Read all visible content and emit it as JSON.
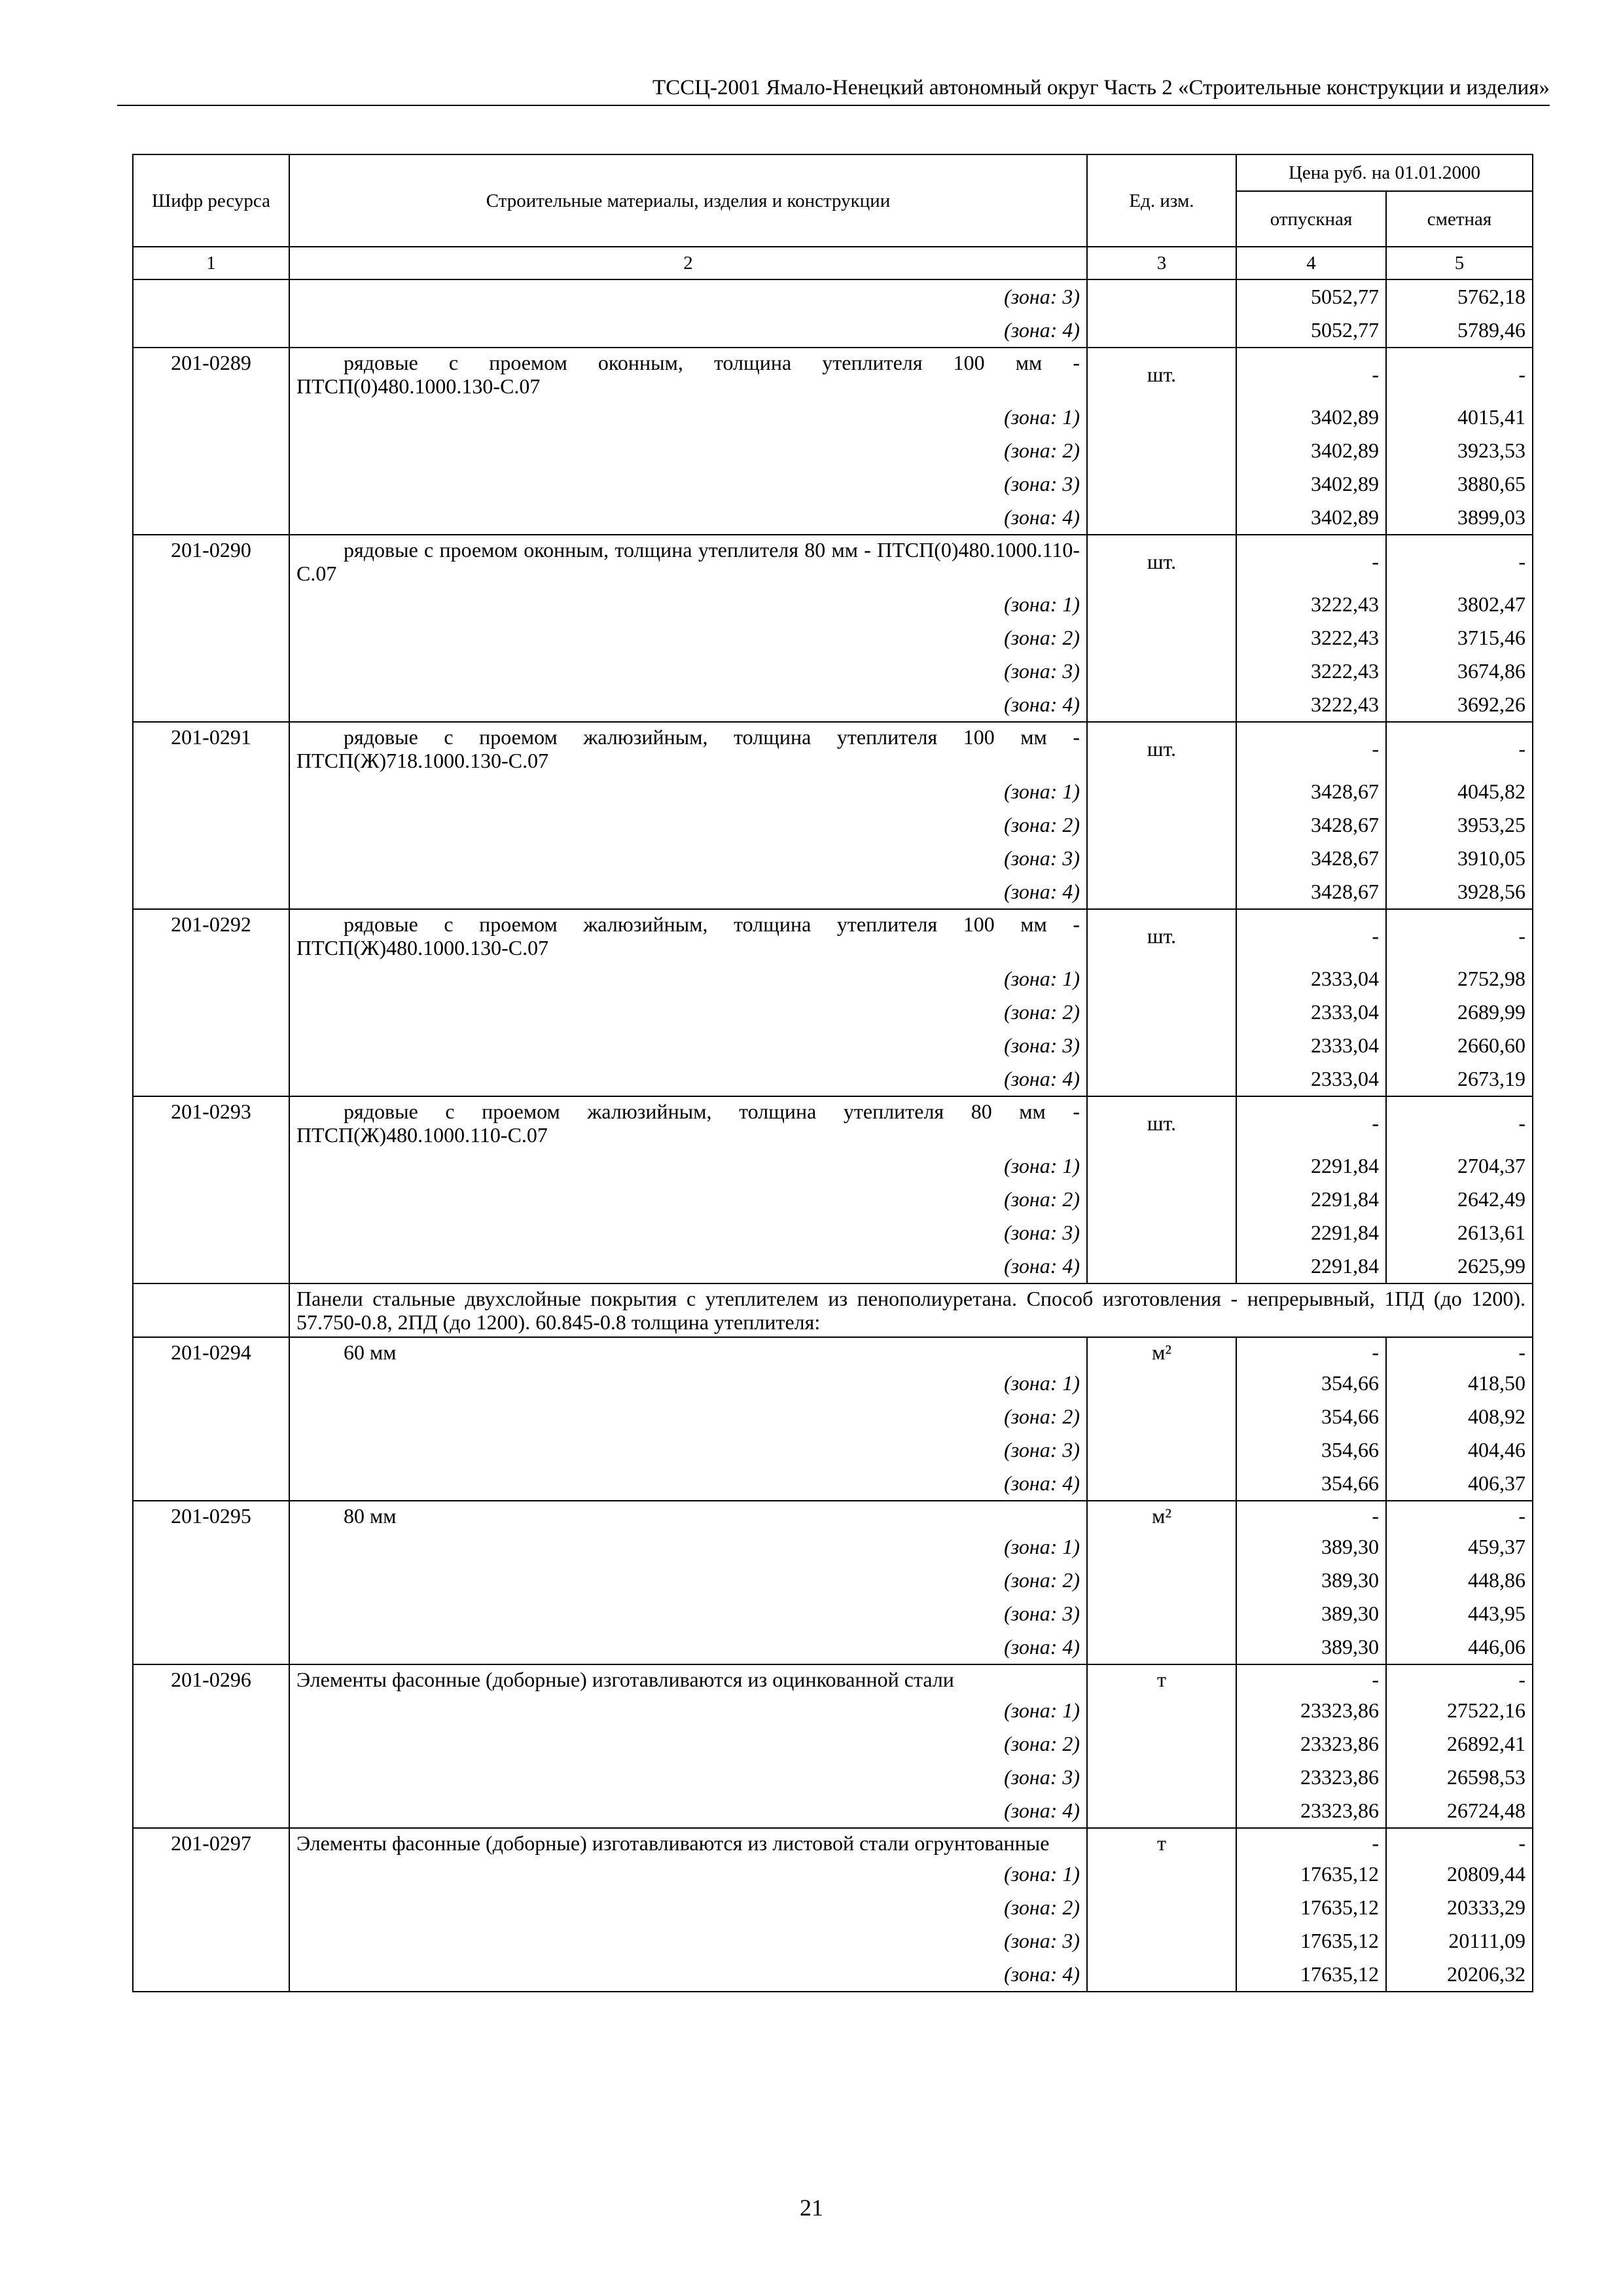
{
  "header": "ТССЦ-2001 Ямало-Ненецкий автономный округ Часть 2 «Строительные конструкции и изделия»",
  "table": {
    "head": {
      "code": "Шифр ресурса",
      "name": "Строительные материалы, изделия и конструкции",
      "unit": "Ед. изм.",
      "price": "Цена руб. на 01.01.2000",
      "release": "отпускная",
      "estimate": "сметная"
    },
    "numbers": [
      "1",
      "2",
      "3",
      "4",
      "5"
    ],
    "groups": [
      {
        "zones": [
          [
            "(зона: 3)",
            "5052,77",
            "5762,18"
          ],
          [
            "(зона: 4)",
            "5052,77",
            "5789,46"
          ]
        ]
      },
      {
        "code": "201-0289",
        "name": "рядовые с проемом оконным, толщина утеплителя 100 мм - ПТСП(0)480.1000.130-С.07",
        "unit": "шт.",
        "release": "-",
        "estimate": "-",
        "zones": [
          [
            "(зона: 1)",
            "3402,89",
            "4015,41"
          ],
          [
            "(зона: 2)",
            "3402,89",
            "3923,53"
          ],
          [
            "(зона: 3)",
            "3402,89",
            "3880,65"
          ],
          [
            "(зона: 4)",
            "3402,89",
            "3899,03"
          ]
        ]
      },
      {
        "code": "201-0290",
        "name": "рядовые с проемом оконным, толщина утеплителя 80 мм - ПТСП(0)480.1000.110-С.07",
        "unit": "шт.",
        "release": "-",
        "estimate": "-",
        "zones": [
          [
            "(зона: 1)",
            "3222,43",
            "3802,47"
          ],
          [
            "(зона: 2)",
            "3222,43",
            "3715,46"
          ],
          [
            "(зона: 3)",
            "3222,43",
            "3674,86"
          ],
          [
            "(зона: 4)",
            "3222,43",
            "3692,26"
          ]
        ]
      },
      {
        "code": "201-0291",
        "name": "рядовые с проемом жалюзийным, толщина утеплителя 100 мм - ПТСП(Ж)718.1000.130-С.07",
        "unit": "шт.",
        "release": "-",
        "estimate": "-",
        "zones": [
          [
            "(зона: 1)",
            "3428,67",
            "4045,82"
          ],
          [
            "(зона: 2)",
            "3428,67",
            "3953,25"
          ],
          [
            "(зона: 3)",
            "3428,67",
            "3910,05"
          ],
          [
            "(зона: 4)",
            "3428,67",
            "3928,56"
          ]
        ]
      },
      {
        "code": "201-0292",
        "name": "рядовые с проемом жалюзийным, толщина утеплителя 100 мм - ПТСП(Ж)480.1000.130-С.07",
        "unit": "шт.",
        "release": "-",
        "estimate": "-",
        "zones": [
          [
            "(зона: 1)",
            "2333,04",
            "2752,98"
          ],
          [
            "(зона: 2)",
            "2333,04",
            "2689,99"
          ],
          [
            "(зона: 3)",
            "2333,04",
            "2660,60"
          ],
          [
            "(зона: 4)",
            "2333,04",
            "2673,19"
          ]
        ]
      },
      {
        "code": "201-0293",
        "name": "рядовые с проемом жалюзийным, толщина утеплителя 80 мм - ПТСП(Ж)480.1000.110-С.07",
        "unit": "шт.",
        "release": "-",
        "estimate": "-",
        "zones": [
          [
            "(зона: 1)",
            "2291,84",
            "2704,37"
          ],
          [
            "(зона: 2)",
            "2291,84",
            "2642,49"
          ],
          [
            "(зона: 3)",
            "2291,84",
            "2613,61"
          ],
          [
            "(зона: 4)",
            "2291,84",
            "2625,99"
          ]
        ]
      },
      {
        "section": "Панели стальные двухслойные покрытия с утеплителем из пенополиуретана. Способ изготовления - непрерывный, 1ПД (до 1200). 57.750-0.8, 2ПД (до 1200). 60.845-0.8 толщина утеплителя:"
      },
      {
        "code": "201-0294",
        "name": "60 мм",
        "unit": "м²",
        "release": "-",
        "estimate": "-",
        "zones": [
          [
            "(зона: 1)",
            "354,66",
            "418,50"
          ],
          [
            "(зона: 2)",
            "354,66",
            "408,92"
          ],
          [
            "(зона: 3)",
            "354,66",
            "404,46"
          ],
          [
            "(зона: 4)",
            "354,66",
            "406,37"
          ]
        ]
      },
      {
        "code": "201-0295",
        "name": "80 мм",
        "unit": "м²",
        "release": "-",
        "estimate": "-",
        "zones": [
          [
            "(зона: 1)",
            "389,30",
            "459,37"
          ],
          [
            "(зона: 2)",
            "389,30",
            "448,86"
          ],
          [
            "(зона: 3)",
            "389,30",
            "443,95"
          ],
          [
            "(зона: 4)",
            "389,30",
            "446,06"
          ]
        ]
      },
      {
        "code": "201-0296",
        "name": "Элементы фасонные (доборные) изготавливаются из оцинкованной стали",
        "unit": "т",
        "release": "-",
        "estimate": "-",
        "zones": [
          [
            "(зона: 1)",
            "23323,86",
            "27522,16"
          ],
          [
            "(зона: 2)",
            "23323,86",
            "26892,41"
          ],
          [
            "(зона: 3)",
            "23323,86",
            "26598,53"
          ],
          [
            "(зона: 4)",
            "23323,86",
            "26724,48"
          ]
        ]
      },
      {
        "code": "201-0297",
        "name": "Элементы фасонные (доборные) изготавливаются из листовой стали огрунтованные",
        "unit": "т",
        "release": "-",
        "estimate": "-",
        "zones": [
          [
            "(зона: 1)",
            "17635,12",
            "20809,44"
          ],
          [
            "(зона: 2)",
            "17635,12",
            "20333,29"
          ],
          [
            "(зона: 3)",
            "17635,12",
            "20111,09"
          ],
          [
            "(зона: 4)",
            "17635,12",
            "20206,32"
          ]
        ]
      }
    ]
  },
  "page_number": "21"
}
